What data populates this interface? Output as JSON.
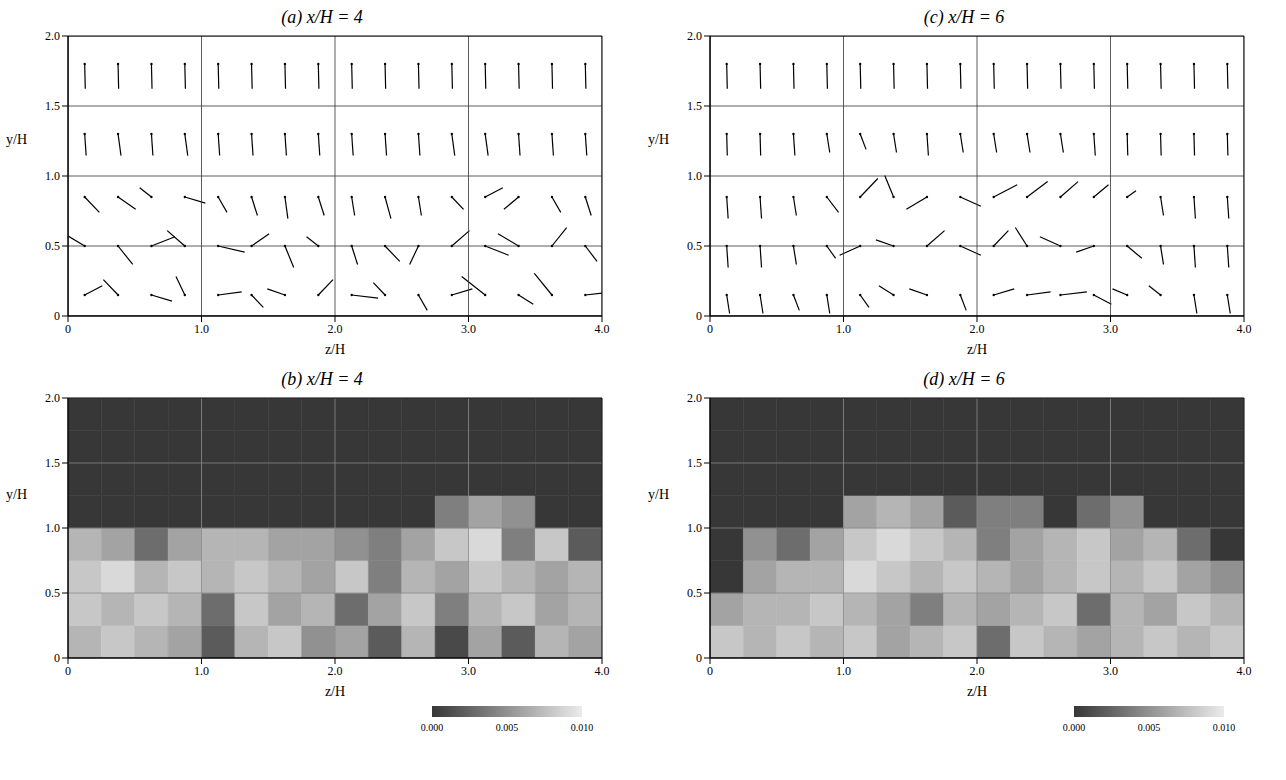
{
  "chart_data": [
    {
      "type": "vector",
      "title": "(a) x/H = 4",
      "xlabel": "z/H",
      "ylabel": "y/H",
      "xlim": [
        0,
        4
      ],
      "ylim": [
        0,
        2
      ],
      "xticks": [
        {
          "value": 0,
          "label": "0"
        },
        {
          "value": 1,
          "label": "1.0"
        },
        {
          "value": 2,
          "label": "2.0"
        },
        {
          "value": 3,
          "label": "3.0"
        },
        {
          "value": 4,
          "label": "4.0"
        }
      ],
      "yticks": [
        {
          "value": 0,
          "label": "0"
        },
        0.5,
        {
          "value": 1,
          "label": "1.0"
        },
        {
          "value": 1.5,
          "label": "1.5"
        },
        {
          "value": 2,
          "label": "2.0"
        }
      ],
      "grid": true,
      "color": "#000000",
      "vectors": {
        "z": [
          0.125,
          0.375,
          0.625,
          0.875,
          1.125,
          1.375,
          1.625,
          1.875,
          2.125,
          2.375,
          2.625,
          2.875,
          3.125,
          3.375,
          3.625,
          3.875
        ],
        "y": [
          0.15,
          0.5,
          0.85,
          1.3,
          1.8
        ],
        "w": [
          [
            0.6,
            -0.5,
            0.7,
            -0.3,
            0.8,
            0.4,
            -0.6,
            0.5,
            0.9,
            -0.4,
            0.3,
            0.7,
            -0.8,
            0.5,
            -0.6,
            0.9
          ],
          [
            -0.7,
            0.5,
            0.8,
            -0.6,
            0.9,
            0.6,
            0.3,
            -0.4,
            0.2,
            0.5,
            -0.3,
            0.6,
            0.8,
            -0.7,
            0.5,
            0.4
          ],
          [
            0.5,
            0.6,
            -0.4,
            0.7,
            0.3,
            0.2,
            0.1,
            0.2,
            0.1,
            0.2,
            0.1,
            0.4,
            0.6,
            -0.5,
            0.3,
            0.2
          ],
          [
            0.05,
            0.1,
            0.05,
            0.1,
            0.05,
            0.05,
            0.05,
            0.05,
            0.05,
            0.05,
            0.05,
            0.1,
            0.1,
            0.05,
            0.05,
            0.05
          ],
          [
            0.02,
            0.02,
            0.02,
            0.02,
            0.02,
            0.02,
            0.02,
            0.02,
            0.02,
            0.02,
            0.02,
            0.02,
            0.02,
            0.02,
            0.02,
            0.02
          ]
        ],
        "v": [
          [
            0.3,
            0.5,
            -0.2,
            0.6,
            0.1,
            -0.4,
            0.2,
            0.5,
            -0.1,
            0.4,
            -0.5,
            0.2,
            0.6,
            -0.3,
            0.7,
            0.1
          ],
          [
            0.4,
            -0.6,
            0.3,
            0.5,
            -0.2,
            0.4,
            -0.7,
            0.3,
            -0.6,
            -0.5,
            -0.6,
            0.5,
            -0.3,
            0.4,
            0.6,
            -0.5
          ],
          [
            -0.5,
            -0.4,
            0.3,
            -0.2,
            -0.5,
            -0.6,
            -0.7,
            -0.6,
            -0.6,
            -0.7,
            -0.6,
            -0.4,
            0.3,
            -0.4,
            -0.5,
            -0.6
          ],
          [
            -0.7,
            -0.7,
            -0.7,
            -0.7,
            -0.7,
            -0.7,
            -0.7,
            -0.7,
            -0.7,
            -0.7,
            -0.7,
            -0.7,
            -0.7,
            -0.7,
            -0.7,
            -0.7
          ],
          [
            -0.8,
            -0.8,
            -0.8,
            -0.8,
            -0.8,
            -0.8,
            -0.8,
            -0.8,
            -0.8,
            -0.8,
            -0.8,
            -0.8,
            -0.8,
            -0.8,
            -0.8,
            -0.8
          ]
        ]
      }
    },
    {
      "type": "vector",
      "title": "(c) x/H = 6",
      "xlabel": "z/H",
      "ylabel": "y/H",
      "xlim": [
        0,
        4
      ],
      "ylim": [
        0,
        2
      ],
      "xticks": [
        {
          "value": 0,
          "label": "0"
        },
        {
          "value": 1,
          "label": "1.0"
        },
        {
          "value": 2,
          "label": "2.0"
        },
        {
          "value": 3,
          "label": "3.0"
        },
        {
          "value": 4,
          "label": "4.0"
        }
      ],
      "yticks": [
        {
          "value": 0,
          "label": "0"
        },
        0.5,
        {
          "value": 1,
          "label": "1.0"
        },
        {
          "value": 1.5,
          "label": "1.5"
        },
        {
          "value": 2,
          "label": "2.0"
        }
      ],
      "grid": true,
      "color": "#000000",
      "vectors": {
        "z": [
          0.125,
          0.375,
          0.625,
          0.875,
          1.125,
          1.375,
          1.625,
          1.875,
          2.125,
          2.375,
          2.625,
          2.875,
          3.125,
          3.375,
          3.625,
          3.875
        ],
        "y": [
          0.15,
          0.5,
          0.85,
          1.3,
          1.8
        ],
        "w": [
          [
            0.1,
            0.1,
            0.2,
            0.1,
            0.3,
            -0.5,
            -0.6,
            0.2,
            0.7,
            0.8,
            0.9,
            0.6,
            -0.5,
            -0.4,
            0.1,
            0.1
          ],
          [
            0.05,
            0.05,
            0.1,
            0.3,
            -0.7,
            -0.6,
            0.6,
            0.7,
            0.5,
            -0.4,
            -0.7,
            -0.6,
            0.5,
            0.1,
            0.05,
            0.05
          ],
          [
            0.05,
            0.05,
            0.1,
            0.4,
            0.6,
            -0.3,
            -0.7,
            0.7,
            0.8,
            0.7,
            0.6,
            0.5,
            0.3,
            0.1,
            0.05,
            0.05
          ],
          [
            0.02,
            0.02,
            0.05,
            0.1,
            0.2,
            0.1,
            0.05,
            0.1,
            0.1,
            0.1,
            0.1,
            0.05,
            0.02,
            0.02,
            0.02,
            0.02
          ],
          [
            0.02,
            0.02,
            0.02,
            0.02,
            0.02,
            0.02,
            0.02,
            0.02,
            0.02,
            0.02,
            0.02,
            0.02,
            0.02,
            0.02,
            0.02,
            0.02
          ]
        ],
        "v": [
          [
            -0.6,
            -0.6,
            -0.5,
            -0.6,
            -0.4,
            0.3,
            0.2,
            -0.5,
            0.2,
            0.1,
            0.1,
            -0.3,
            0.2,
            0.3,
            -0.6,
            -0.6
          ],
          [
            -0.7,
            -0.7,
            -0.6,
            -0.4,
            -0.3,
            0.2,
            0.5,
            -0.3,
            0.5,
            0.6,
            0.3,
            -0.2,
            -0.4,
            -0.6,
            -0.7,
            -0.7
          ],
          [
            -0.7,
            -0.7,
            -0.6,
            -0.5,
            0.6,
            0.7,
            -0.4,
            -0.3,
            0.4,
            0.5,
            0.5,
            0.4,
            0.2,
            -0.6,
            -0.7,
            -0.7
          ],
          [
            -0.7,
            -0.7,
            -0.7,
            -0.6,
            -0.5,
            -0.6,
            -0.7,
            -0.6,
            -0.6,
            -0.6,
            -0.6,
            -0.7,
            -0.7,
            -0.7,
            -0.7,
            -0.7
          ],
          [
            -0.8,
            -0.8,
            -0.8,
            -0.8,
            -0.8,
            -0.8,
            -0.8,
            -0.8,
            -0.8,
            -0.8,
            -0.8,
            -0.8,
            -0.8,
            -0.8,
            -0.8,
            -0.8
          ]
        ]
      }
    },
    {
      "type": "heatmap",
      "title": "(b) x/H = 4",
      "xlabel": "z/H",
      "ylabel": "y/H",
      "xlim": [
        0,
        4
      ],
      "ylim": [
        0,
        2
      ],
      "xticks": [
        {
          "value": 0,
          "label": "0"
        },
        {
          "value": 1,
          "label": "1.0"
        },
        {
          "value": 2,
          "label": "2.0"
        },
        {
          "value": 3,
          "label": "3.0"
        },
        {
          "value": 4,
          "label": "4.0"
        }
      ],
      "yticks": [
        {
          "value": 0,
          "label": "0"
        },
        0.5,
        {
          "value": 1,
          "label": "1.0"
        },
        {
          "value": 1.5,
          "label": "1.5"
        },
        {
          "value": 2,
          "label": "2.0"
        }
      ],
      "grid": true,
      "cells": {
        "z": [
          0.125,
          0.375,
          0.625,
          0.875,
          1.125,
          1.375,
          1.625,
          1.875,
          2.125,
          2.375,
          2.625,
          2.875,
          3.125,
          3.375,
          3.625,
          3.875
        ],
        "y": [
          0.125,
          0.375,
          0.625,
          0.875,
          1.125,
          1.375,
          1.625,
          1.875
        ],
        "values": [
          [
            0.007,
            0.008,
            0.007,
            0.006,
            0.002,
            0.007,
            0.008,
            0.005,
            0.006,
            0.002,
            0.007,
            0.001,
            0.006,
            0.002,
            0.007,
            0.006
          ],
          [
            0.008,
            0.007,
            0.008,
            0.007,
            0.003,
            0.008,
            0.006,
            0.007,
            0.003,
            0.006,
            0.008,
            0.004,
            0.007,
            0.008,
            0.006,
            0.007
          ],
          [
            0.008,
            0.009,
            0.007,
            0.008,
            0.007,
            0.008,
            0.007,
            0.006,
            0.008,
            0.004,
            0.007,
            0.006,
            0.008,
            0.007,
            0.006,
            0.007
          ],
          [
            0.007,
            0.006,
            0.003,
            0.006,
            0.007,
            0.007,
            0.006,
            0.006,
            0.005,
            0.004,
            0.006,
            0.008,
            0.009,
            0.004,
            0.008,
            0.002
          ],
          [
            0,
            0,
            0,
            0,
            0,
            0,
            0,
            0,
            0,
            0,
            0,
            0.004,
            0.006,
            0.005,
            0,
            0
          ],
          [
            0,
            0,
            0,
            0,
            0,
            0,
            0,
            0,
            0,
            0,
            0,
            0,
            0,
            0,
            0,
            0
          ],
          [
            0,
            0,
            0,
            0,
            0,
            0,
            0,
            0,
            0,
            0,
            0,
            0,
            0,
            0,
            0,
            0
          ],
          [
            0,
            0,
            0,
            0,
            0,
            0,
            0,
            0,
            0,
            0,
            0,
            0,
            0,
            0,
            0,
            0
          ]
        ]
      },
      "colorbar": {
        "range": [
          0,
          0.01
        ],
        "ticks": [
          {
            "value": 0,
            "label": "0.000"
          },
          {
            "value": 0.005,
            "label": "0.005"
          },
          {
            "value": 0.01,
            "label": "0.010"
          }
        ]
      }
    },
    {
      "type": "heatmap",
      "title": "(d) x/H = 6",
      "xlabel": "z/H",
      "ylabel": "y/H",
      "xlim": [
        0,
        4
      ],
      "ylim": [
        0,
        2
      ],
      "xticks": [
        {
          "value": 0,
          "label": "0"
        },
        {
          "value": 1,
          "label": "1.0"
        },
        {
          "value": 2,
          "label": "2.0"
        },
        {
          "value": 3,
          "label": "3.0"
        },
        {
          "value": 4,
          "label": "4.0"
        }
      ],
      "yticks": [
        {
          "value": 0,
          "label": "0"
        },
        0.5,
        {
          "value": 1,
          "label": "1.0"
        },
        {
          "value": 1.5,
          "label": "1.5"
        },
        {
          "value": 2,
          "label": "2.0"
        }
      ],
      "grid": true,
      "cells": {
        "z": [
          0.125,
          0.375,
          0.625,
          0.875,
          1.125,
          1.375,
          1.625,
          1.875,
          2.125,
          2.375,
          2.625,
          2.875,
          3.125,
          3.375,
          3.625,
          3.875
        ],
        "y": [
          0.125,
          0.375,
          0.625,
          0.875,
          1.125,
          1.375,
          1.625,
          1.875
        ],
        "values": [
          [
            0.008,
            0.007,
            0.008,
            0.007,
            0.008,
            0.006,
            0.007,
            0.008,
            0.003,
            0.008,
            0.007,
            0.006,
            0.007,
            0.008,
            0.007,
            0.008
          ],
          [
            0.006,
            0.007,
            0.007,
            0.008,
            0.007,
            0.006,
            0.004,
            0.007,
            0.006,
            0.007,
            0.008,
            0.003,
            0.007,
            0.006,
            0.008,
            0.007
          ],
          [
            0,
            0.006,
            0.007,
            0.007,
            0.009,
            0.008,
            0.007,
            0.008,
            0.007,
            0.006,
            0.007,
            0.008,
            0.007,
            0.008,
            0.006,
            0.005
          ],
          [
            0,
            0.005,
            0.003,
            0.006,
            0.008,
            0.009,
            0.008,
            0.007,
            0.004,
            0.006,
            0.007,
            0.008,
            0.006,
            0.007,
            0.003,
            0
          ],
          [
            0,
            0,
            0,
            0,
            0.006,
            0.007,
            0.006,
            0.002,
            0.004,
            0.004,
            0,
            0.003,
            0.005,
            0,
            0,
            0
          ],
          [
            0,
            0,
            0,
            0,
            0,
            0,
            0,
            0,
            0,
            0,
            0,
            0,
            0,
            0,
            0,
            0
          ],
          [
            0,
            0,
            0,
            0,
            0,
            0,
            0,
            0,
            0,
            0,
            0,
            0,
            0,
            0,
            0,
            0
          ],
          [
            0,
            0,
            0,
            0,
            0,
            0,
            0,
            0,
            0,
            0,
            0,
            0,
            0,
            0,
            0,
            0
          ]
        ]
      },
      "colorbar": {
        "range": [
          0,
          0.01
        ],
        "ticks": [
          {
            "value": 0,
            "label": "0.000"
          },
          {
            "value": 0.005,
            "label": "0.005"
          },
          {
            "value": 0.01,
            "label": "0.010"
          }
        ]
      }
    }
  ]
}
